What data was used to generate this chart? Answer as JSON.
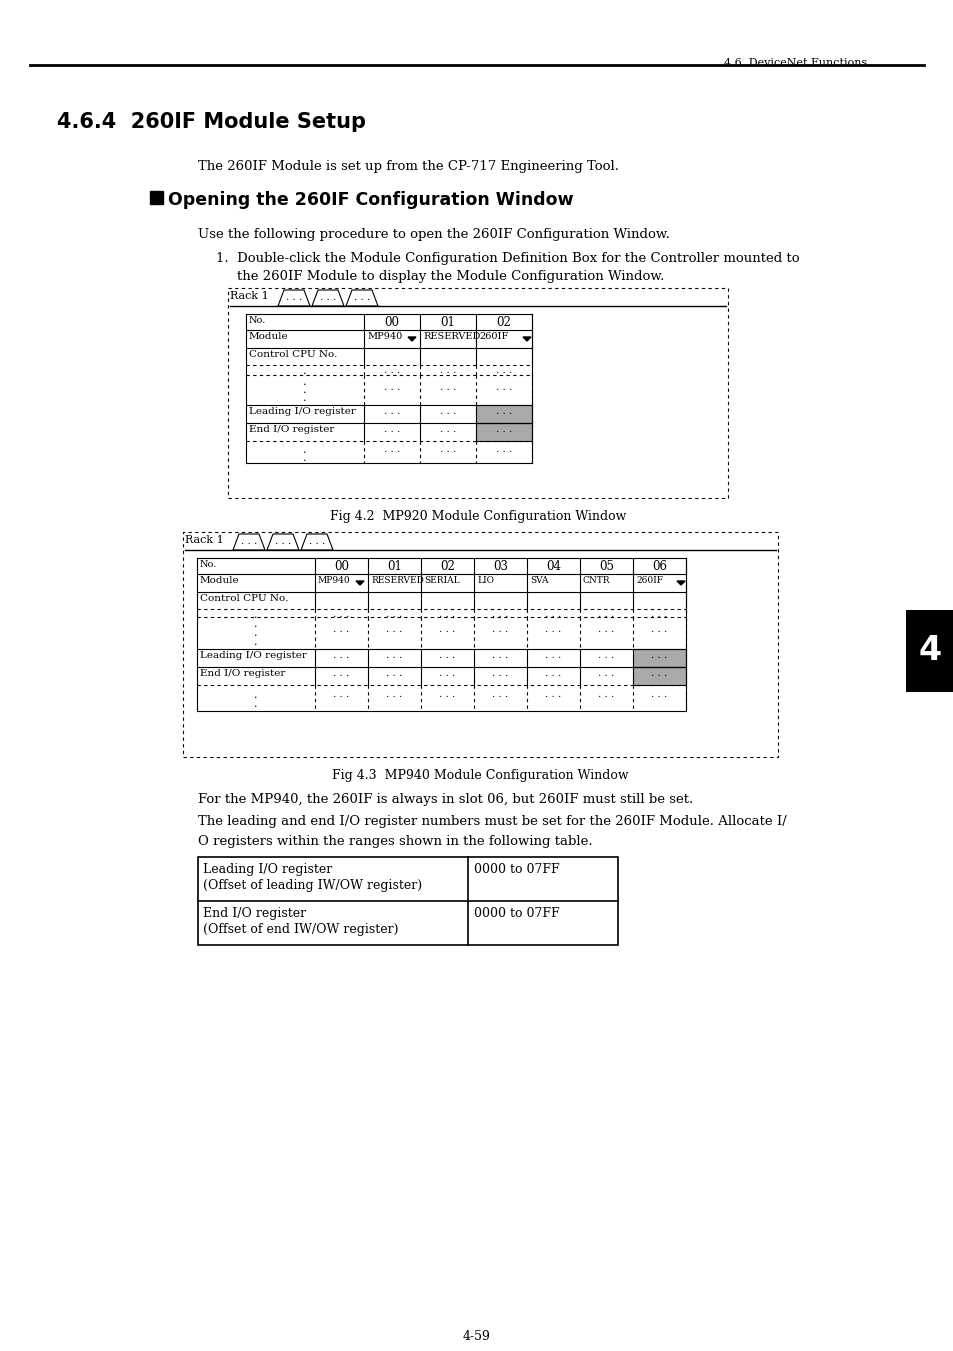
{
  "page_header_right": "4.6  DeviceNet Functions",
  "section_title": "4.6.4  260IF Module Setup",
  "intro_text": "The 260IF Module is set up from the CP-717 Engineering Tool.",
  "subsection_title": "Opening the 260IF Configuration Window",
  "body_text1": "Use the following procedure to open the 260IF Configuration Window.",
  "list_item1": "1.  Double-click the Module Configuration Definition Box for the Controller mounted to",
  "list_item1b": "the 260IF Module to display the Module Configuration Window.",
  "fig1_caption": "Fig 4.2  MP920 Module Configuration Window",
  "fig2_caption": "Fig 4.3  MP940 Module Configuration Window",
  "para1": "For the MP940, the 260IF is always in slot 06, but 260IF must still be set.",
  "para2": "The leading and end I/O register numbers must be set for the 260IF Module. Allocate I/",
  "para3": "O registers within the ranges shown in the following table.",
  "table_row1_col1a": "Leading I/O register",
  "table_row1_col1b": "(Offset of leading IW/OW register)",
  "table_row1_col2": "0000 to 07FF",
  "table_row2_col1a": "End I/O register",
  "table_row2_col1b": "(Offset of end IW/OW register)",
  "table_row2_col2": "0000 to 07FF",
  "page_number": "4-59",
  "tab1_module_row": [
    "MP940",
    "RESERVED",
    "260IF"
  ],
  "tab2_module_row": [
    "MP940",
    "RESERVED",
    "SERIAL",
    "LIO",
    "SVA",
    "CNTR",
    "260IF"
  ],
  "gray_color": "#aaaaaa",
  "black": "#000000",
  "white": "#ffffff",
  "bg_color": "#ffffff"
}
